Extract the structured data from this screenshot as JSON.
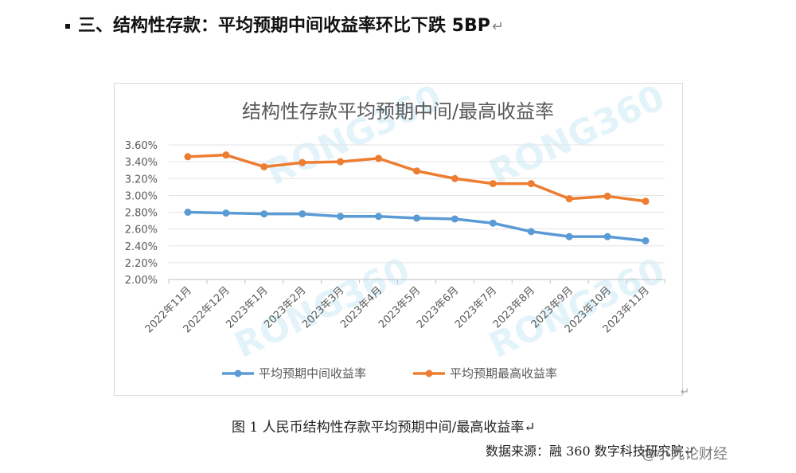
{
  "heading": {
    "text": "三、结构性存款：平均预期中间收益率环比下跌 5BP",
    "return_mark": "↵"
  },
  "caption": "图 1  人民币结构性存款平均预期中间/最高收益率↵",
  "source": "数据来源：融 360 数字科技研究院↵",
  "anchor_mark": "↵",
  "weibo_watermark": "@小九论财经",
  "chart_watermark": "RONG360",
  "chart_data": {
    "type": "line",
    "title": "结构性存款平均预期中间/最高收益率",
    "categories": [
      "2022年11月",
      "2022年12月",
      "2023年1月",
      "2023年2月",
      "2023年3月",
      "2023年4月",
      "2023年5月",
      "2023年6月",
      "2023年7月",
      "2023年8月",
      "2023年9月",
      "2023年10月",
      "2023年11月"
    ],
    "yticks": [
      "2.00%",
      "2.20%",
      "2.40%",
      "2.60%",
      "2.80%",
      "3.00%",
      "3.20%",
      "3.40%",
      "3.60%"
    ],
    "ylim": [
      2.0,
      3.6
    ],
    "grid": true,
    "legend_position": "bottom",
    "series": [
      {
        "name": "平均预期中间收益率",
        "color": "#5b9bd5",
        "values": [
          2.8,
          2.79,
          2.78,
          2.78,
          2.75,
          2.75,
          2.73,
          2.72,
          2.67,
          2.57,
          2.51,
          2.51,
          2.46
        ]
      },
      {
        "name": "平均预期最高收益率",
        "color": "#ed7d31",
        "values": [
          3.46,
          3.48,
          3.34,
          3.39,
          3.4,
          3.44,
          3.29,
          3.2,
          3.14,
          3.14,
          2.96,
          2.99,
          2.93
        ]
      }
    ]
  }
}
